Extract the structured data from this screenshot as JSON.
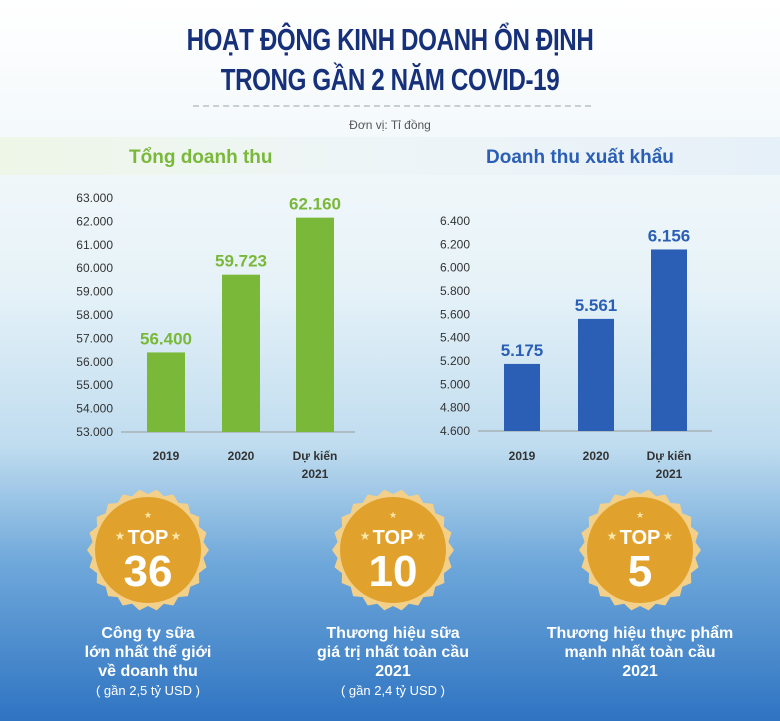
{
  "header": {
    "title_line1": "HOẠT ĐỘNG KINH DOANH ỔN ĐỊNH",
    "title_line2": "TRONG GẦN 2 NĂM COVID-19",
    "unit": "Đơn vị: Tỉ đồng"
  },
  "chart_data": [
    {
      "type": "bar",
      "title": "Tổng doanh thu",
      "categories": [
        "2019",
        "2020",
        "Dự kiến 2021"
      ],
      "values": [
        56400,
        59723,
        62160
      ],
      "value_labels": [
        "56.400",
        "59.723",
        "62.160"
      ],
      "ylim": [
        53000,
        63000
      ],
      "yticks": [
        "53.000",
        "54.000",
        "55.000",
        "56.000",
        "57.000",
        "58.000",
        "59.000",
        "60.000",
        "61.000",
        "62.000",
        "63.000"
      ],
      "color": "#7ab83a",
      "title_color": "#7ab83a",
      "grid": false
    },
    {
      "type": "bar",
      "title": "Doanh thu xuất khẩu",
      "categories": [
        "2019",
        "2020",
        "Dự kiến 2021"
      ],
      "values": [
        5175,
        5561,
        6156
      ],
      "value_labels": [
        "5.175",
        "5.561",
        "6.156"
      ],
      "ylim": [
        4600,
        6400
      ],
      "yticks": [
        "4.600",
        "4.800",
        "5.000",
        "5.200",
        "5.400",
        "5.600",
        "5.800",
        "6.000",
        "6.200",
        "6.400"
      ],
      "color": "#2b5fb5",
      "title_color": "#2b5fb5",
      "grid": false
    }
  ],
  "badges": [
    {
      "top": "TOP",
      "rank": "36",
      "lines": [
        "Công ty sữa",
        "lớn nhất thế giới",
        "về doanh thu"
      ],
      "note": "( gần 2,5 tỷ USD )"
    },
    {
      "top": "TOP",
      "rank": "10",
      "lines": [
        "Thương hiệu sữa",
        "giá trị nhất toàn cầu",
        "2021"
      ],
      "note": "( gần 2,4 tỷ USD )"
    },
    {
      "top": "TOP",
      "rank": "5",
      "lines": [
        "Thương hiệu thực phẩm",
        "mạnh nhất toàn cầu",
        "2021"
      ],
      "note": ""
    }
  ],
  "colors": {
    "title": "#16307a",
    "badge": "#e0a22c"
  }
}
